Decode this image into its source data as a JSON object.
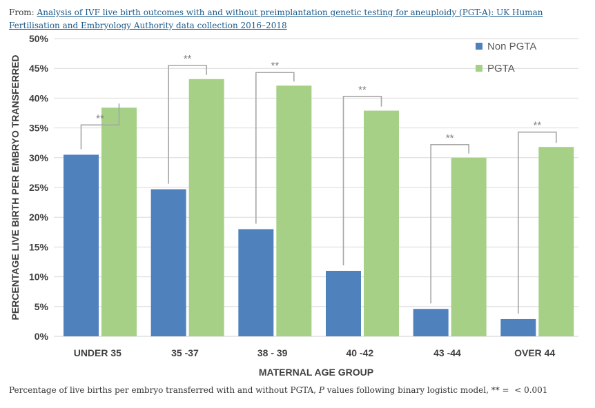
{
  "source": {
    "prefix": "From:",
    "link_text": "Analysis of IVF live birth outcomes with and without preimplantation genetic testing for aneuploidy (PGT-A): UK Human Fertilisation and Embryology Authority data collection 2016–2018"
  },
  "caption": {
    "part1": "Percentage of live births per embryo transferred with and without PGTA, ",
    "p_italic": "P",
    "part2": " values following binary logistic model, ** =  < 0.001"
  },
  "colors": {
    "non_pgta": "#4f81bd",
    "pgta": "#a5d086",
    "grid": "#d9d9d9",
    "bracket": "#a6a6a6",
    "axis_text": "#404040"
  },
  "chart_data": {
    "type": "bar",
    "title": "",
    "xlabel": "MATERNAL AGE GROUP",
    "ylabel": "PERCENTAGE LIVE BIRTH PER EMBRYO TRANSFERRED",
    "ylim": [
      0,
      50
    ],
    "yticks": [
      0,
      5,
      10,
      15,
      20,
      25,
      30,
      35,
      40,
      45,
      50
    ],
    "ytick_labels": [
      "0%",
      "5%",
      "10%",
      "15%",
      "20%",
      "25%",
      "30%",
      "35%",
      "40%",
      "45%",
      "50%"
    ],
    "categories": [
      "UNDER 35",
      "35 -37",
      "38 - 39",
      "40 -42",
      "43 -44",
      "OVER 44"
    ],
    "series": [
      {
        "name": "Non PGTA",
        "values": [
          30.5,
          24.7,
          18.0,
          11.0,
          4.6,
          2.9
        ]
      },
      {
        "name": "PGTA",
        "values": [
          38.4,
          43.2,
          42.1,
          37.9,
          30.0,
          31.8
        ]
      }
    ],
    "significance": [
      {
        "label": "**",
        "bracket_top": 35.5
      },
      {
        "label": "**",
        "bracket_top": 45.5
      },
      {
        "label": "**",
        "bracket_top": 44.3
      },
      {
        "label": "**",
        "bracket_top": 40.3
      },
      {
        "label": "**",
        "bracket_top": 32.2
      },
      {
        "label": "**",
        "bracket_top": 34.3
      }
    ],
    "legend_position": "top-right",
    "grid": true
  }
}
